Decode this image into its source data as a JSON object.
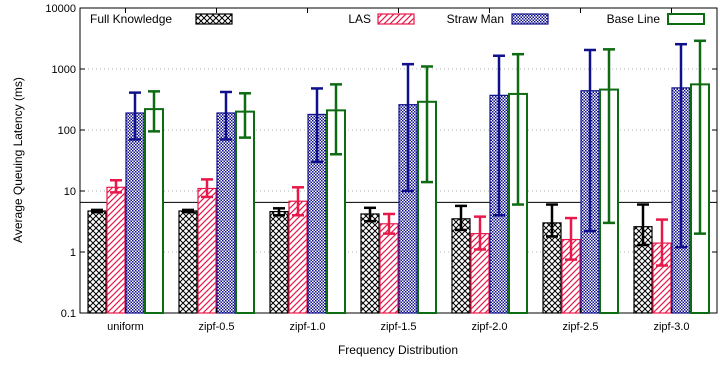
{
  "chart_data": {
    "type": "bar",
    "title": "",
    "xlabel": "Frequency Distribution",
    "ylabel": "Average Queuing Latency (ms)",
    "yscale": "log",
    "ylim": [
      0.1,
      10000
    ],
    "yticks": [
      "0.1",
      "1",
      "10",
      "100",
      "1000",
      "10000"
    ],
    "grid": "dotted horizontal",
    "legend_position": "top",
    "reference_line": 6.5,
    "categories": [
      "uniform",
      "zipf-0.5",
      "zipf-1.0",
      "zipf-1.5",
      "zipf-2.0",
      "zipf-2.5",
      "zipf-3.0"
    ],
    "series": [
      {
        "name": "Full Knowledge",
        "color": "#000000",
        "pattern": "crosshatch",
        "values": [
          4.7,
          4.7,
          4.6,
          4.2,
          3.5,
          3.0,
          2.6
        ],
        "err_low": [
          4.5,
          4.5,
          4.0,
          3.2,
          2.3,
          1.8,
          1.3
        ],
        "err_high": [
          4.9,
          4.9,
          5.2,
          5.3,
          5.7,
          6.0,
          6.0
        ]
      },
      {
        "name": "LAS",
        "color": "#e8194a",
        "pattern": "diagonal",
        "values": [
          11.5,
          11.0,
          6.8,
          2.9,
          2.0,
          1.6,
          1.4
        ],
        "err_low": [
          9.5,
          8.0,
          4.0,
          2.0,
          1.1,
          0.75,
          0.6
        ],
        "err_high": [
          15.0,
          15.5,
          11.5,
          4.2,
          3.8,
          3.6,
          3.4
        ]
      },
      {
        "name": "Straw Man",
        "color": "#10108c",
        "pattern": "dots",
        "values": [
          190,
          190,
          180,
          260,
          370,
          440,
          490
        ],
        "err_low": [
          70,
          70,
          30,
          10,
          4.0,
          2.2,
          1.2
        ],
        "err_high": [
          410,
          420,
          480,
          1200,
          1650,
          2050,
          2550
        ]
      },
      {
        "name": "Base Line",
        "color": "#0d6b12",
        "pattern": "solid-outline",
        "values": [
          220,
          200,
          210,
          290,
          390,
          460,
          560
        ],
        "err_low": [
          95,
          75,
          40,
          14,
          6.0,
          3.0,
          2.0
        ],
        "err_high": [
          430,
          400,
          560,
          1100,
          1750,
          2100,
          2900
        ]
      }
    ]
  }
}
